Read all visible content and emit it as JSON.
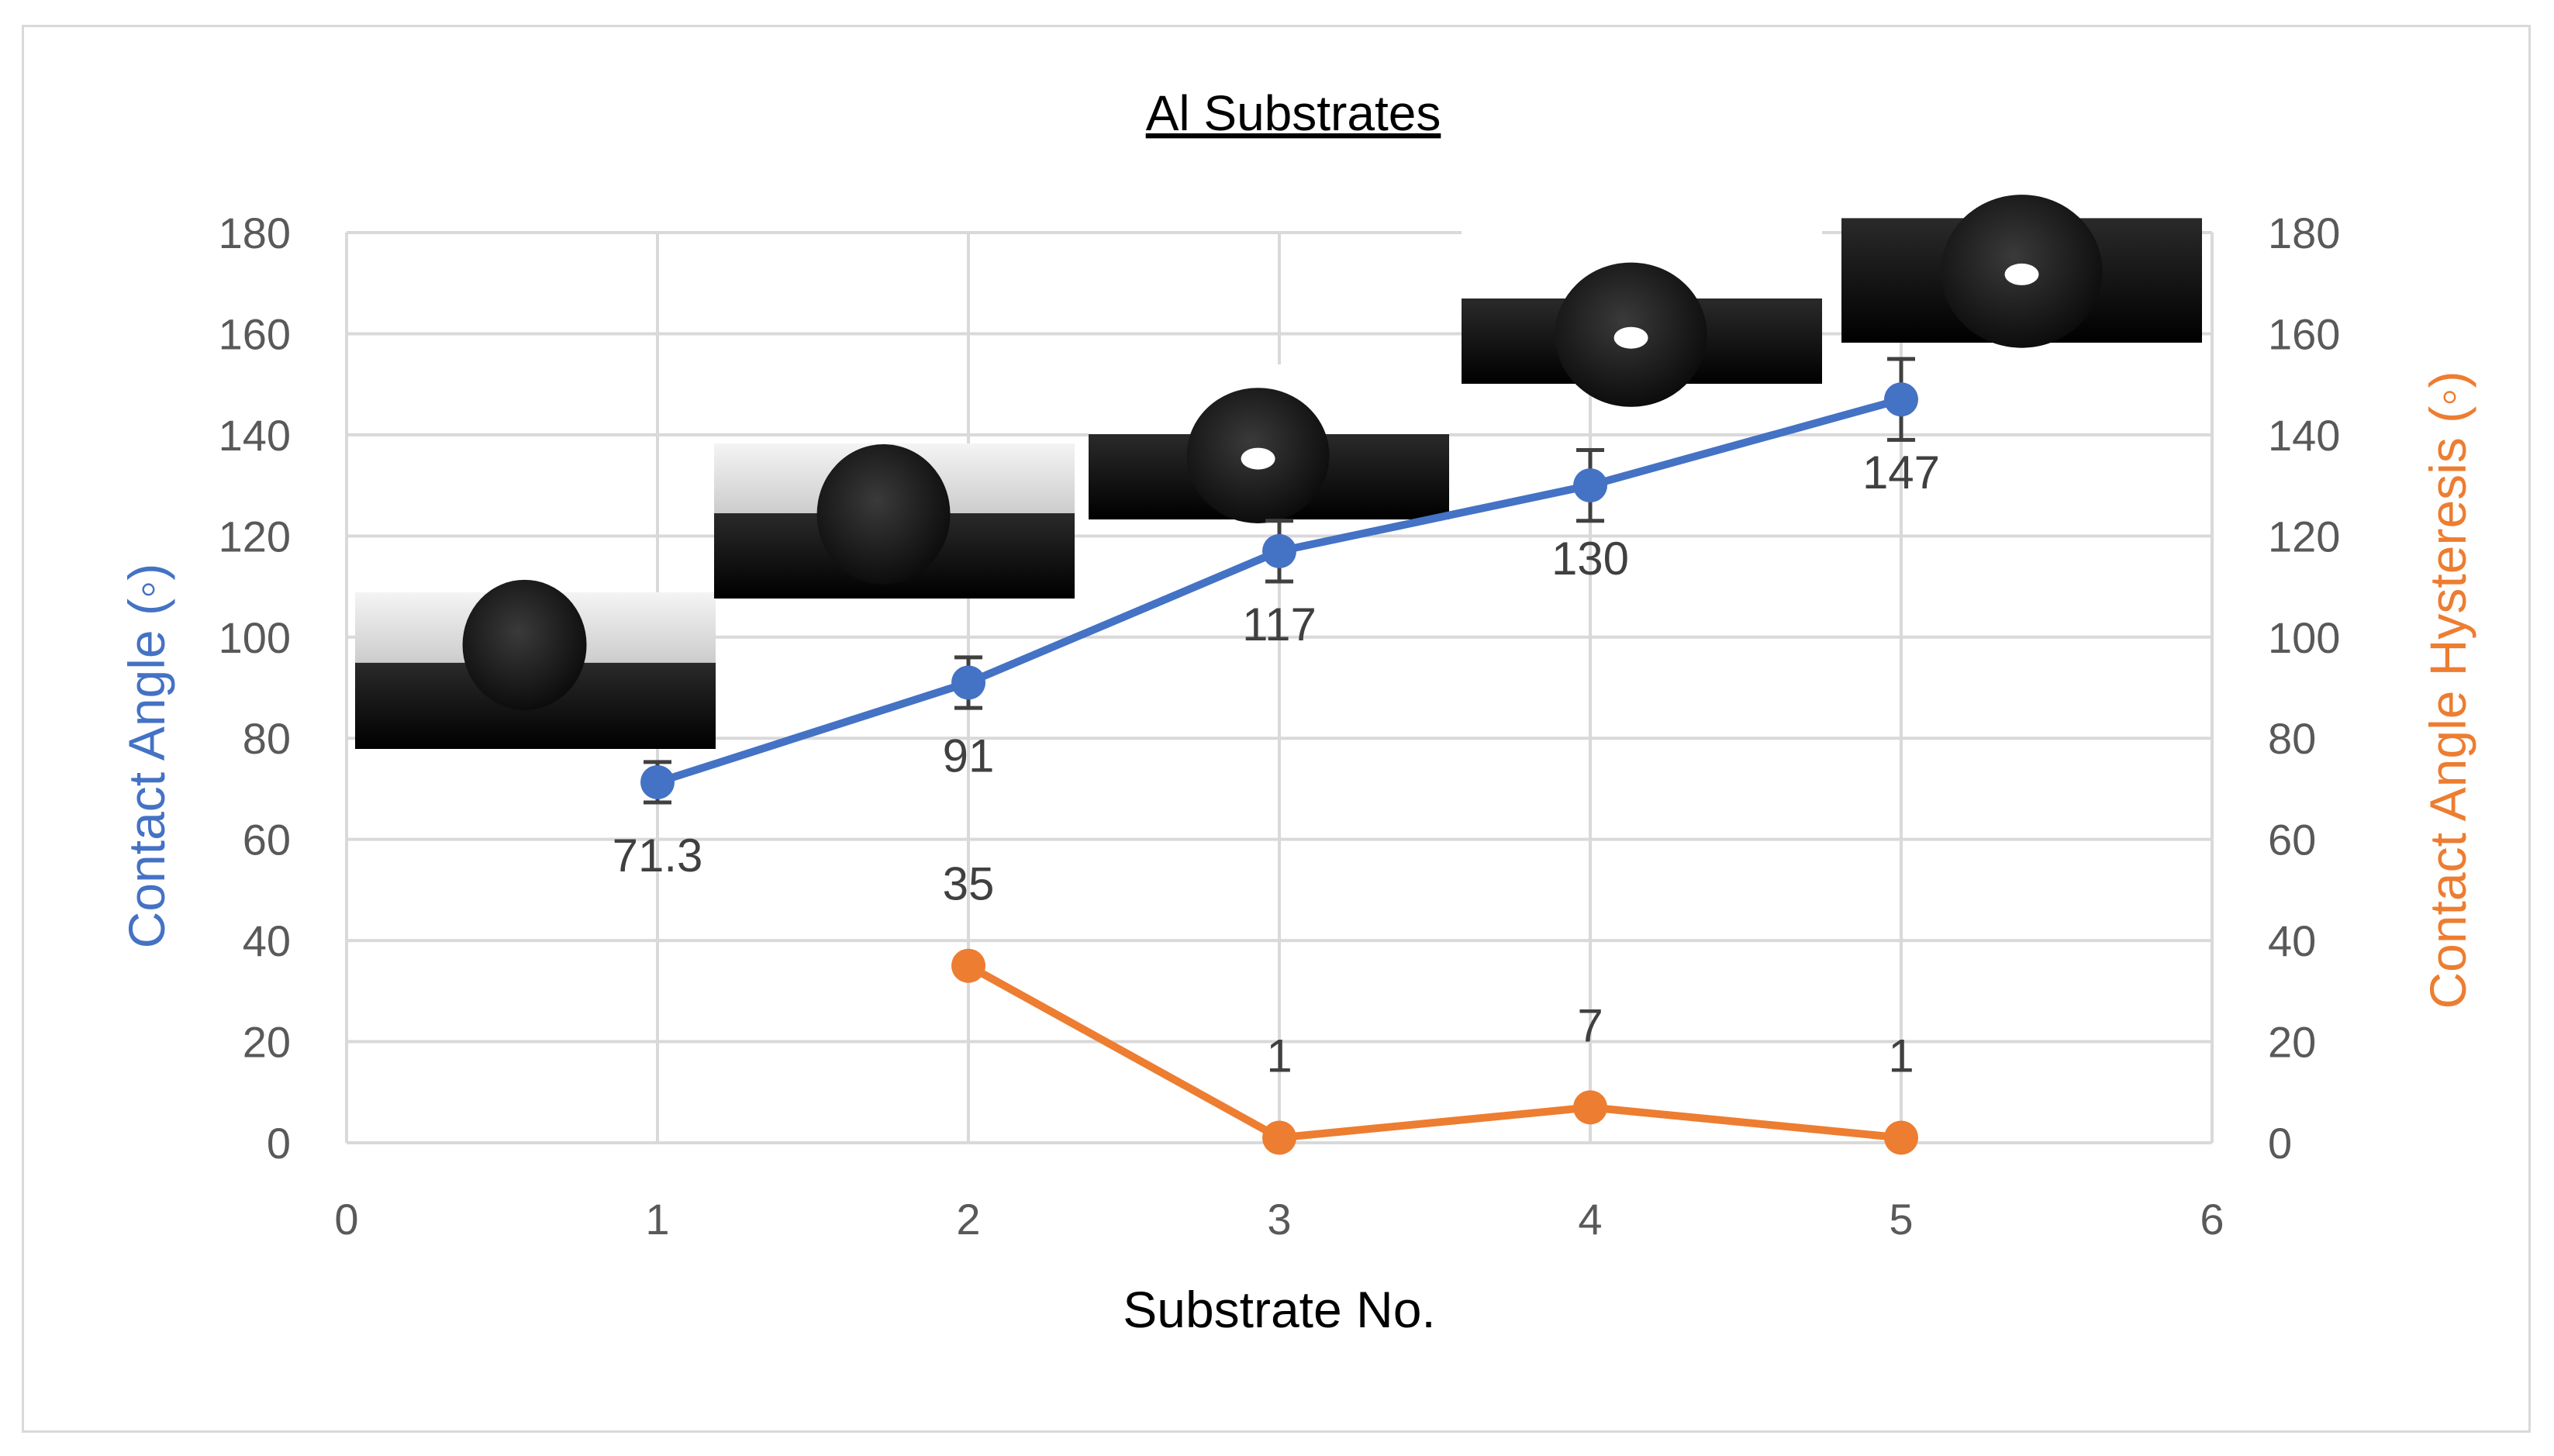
{
  "chart_data": {
    "type": "line",
    "title": "Al Substrates",
    "xlabel": "Substrate No.",
    "ylabel": "Contact Angle (◦)",
    "y2label": "Contact Angle Hysteresis (◦)",
    "xlim": [
      0,
      6
    ],
    "ylim": [
      0,
      180
    ],
    "y2lim": [
      0,
      180
    ],
    "x_ticks": [
      "0",
      "1",
      "2",
      "3",
      "4",
      "5",
      "6"
    ],
    "y_ticks": [
      "0",
      "20",
      "40",
      "60",
      "80",
      "100",
      "120",
      "140",
      "160",
      "180"
    ],
    "y2_ticks": [
      "0",
      "20",
      "40",
      "60",
      "80",
      "100",
      "120",
      "140",
      "160",
      "180"
    ],
    "grid": true,
    "series": [
      {
        "axis": "left",
        "color": "#4472c4",
        "x": [
          1,
          2,
          3,
          4,
          5
        ],
        "y": [
          71.3,
          91,
          117,
          130,
          147
        ],
        "error": [
          4,
          5,
          6,
          7,
          8
        ],
        "labels": [
          "71.3",
          "91",
          "117",
          "130",
          "147"
        ]
      },
      {
        "axis": "right",
        "color": "#ed7d31",
        "x": [
          2,
          3,
          4,
          5
        ],
        "y": [
          35,
          1,
          7,
          1
        ],
        "labels": [
          "35",
          "1",
          "7",
          "1"
        ]
      }
    ],
    "droplet_images": [
      {
        "x": 1,
        "contact_angle": 71.3
      },
      {
        "x": 2,
        "contact_angle": 91
      },
      {
        "x": 3,
        "contact_angle": 117
      },
      {
        "x": 4,
        "contact_angle": 130
      },
      {
        "x": 5,
        "contact_angle": 147
      }
    ]
  }
}
